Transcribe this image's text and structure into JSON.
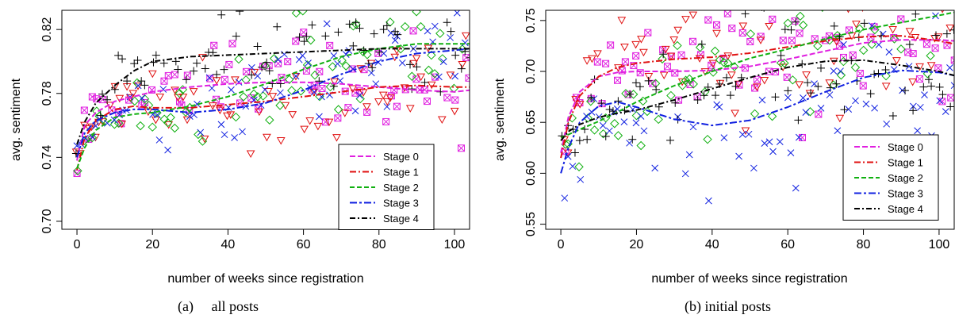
{
  "colors": {
    "Stage 0": "#e020e0",
    "Stage 1": "#e01010",
    "Stage 2": "#10b010",
    "Stage 3": "#1020e0",
    "Stage 4": "#000000"
  },
  "markers": {
    "Stage 0": "square-x",
    "Stage 1": "triangle-down",
    "Stage 2": "diamond",
    "Stage 3": "cross-x",
    "Stage 4": "plus"
  },
  "captions": {
    "a": "(a)     all posts",
    "b": "(b) initial posts"
  },
  "chart_data": [
    {
      "type": "scatter",
      "xlabel": "number of weeks since registration",
      "ylabel": "avg. sentiment",
      "xlim": [
        -4,
        104
      ],
      "ylim": [
        0.695,
        0.832
      ],
      "xticks": [
        0,
        20,
        40,
        60,
        80,
        100
      ],
      "yticks": [
        0.7,
        0.74,
        0.78,
        0.82
      ],
      "ytick_labels": [
        "0.70",
        "0.74",
        "0.78",
        "0.82"
      ],
      "legend_position": "bottom-right",
      "scatter_center_offset": {
        "Stage 0": 0.0,
        "Stage 1": 0.0,
        "Stage 2": 0.0,
        "Stage 3": 0.0,
        "Stage 4": 0.0
      },
      "scatter_spread": 0.022,
      "series": [
        {
          "name": "Stage 0",
          "x": [
            0,
            2,
            5,
            10,
            15,
            20,
            30,
            40,
            50,
            60,
            70,
            80,
            90,
            100,
            104
          ],
          "y": [
            0.738,
            0.76,
            0.768,
            0.775,
            0.778,
            0.781,
            0.784,
            0.786,
            0.787,
            0.787,
            0.786,
            0.784,
            0.782,
            0.781,
            0.782
          ]
        },
        {
          "name": "Stage 1",
          "x": [
            0,
            2,
            5,
            10,
            15,
            20,
            30,
            40,
            50,
            60,
            70,
            80,
            90,
            100,
            104
          ],
          "y": [
            0.732,
            0.752,
            0.763,
            0.77,
            0.772,
            0.771,
            0.771,
            0.773,
            0.775,
            0.778,
            0.781,
            0.784,
            0.785,
            0.784,
            0.784
          ]
        },
        {
          "name": "Stage 2",
          "x": [
            0,
            2,
            5,
            10,
            15,
            20,
            30,
            40,
            50,
            60,
            70,
            80,
            90,
            100,
            104
          ],
          "y": [
            0.733,
            0.746,
            0.757,
            0.765,
            0.767,
            0.768,
            0.772,
            0.778,
            0.786,
            0.795,
            0.803,
            0.808,
            0.811,
            0.811,
            0.811
          ]
        },
        {
          "name": "Stage 3",
          "x": [
            0,
            2,
            5,
            10,
            15,
            20,
            30,
            40,
            50,
            60,
            70,
            80,
            90,
            100,
            104
          ],
          "y": [
            0.74,
            0.755,
            0.763,
            0.768,
            0.77,
            0.77,
            0.768,
            0.77,
            0.774,
            0.782,
            0.792,
            0.8,
            0.805,
            0.807,
            0.808
          ]
        },
        {
          "name": "Stage 4",
          "x": [
            0,
            2,
            5,
            10,
            15,
            20,
            30,
            40,
            50,
            60,
            70,
            80,
            90,
            100,
            104
          ],
          "y": [
            0.748,
            0.762,
            0.774,
            0.785,
            0.794,
            0.8,
            0.803,
            0.804,
            0.805,
            0.806,
            0.807,
            0.808,
            0.808,
            0.808,
            0.808
          ]
        }
      ]
    },
    {
      "type": "scatter",
      "xlabel": "number of weeks since registration",
      "ylabel": "avg. sentiment",
      "xlim": [
        -4,
        104
      ],
      "ylim": [
        0.545,
        0.76
      ],
      "xticks": [
        0,
        20,
        40,
        60,
        80,
        100
      ],
      "yticks": [
        0.55,
        0.6,
        0.65,
        0.7,
        0.75
      ],
      "ytick_labels": [
        "0.55",
        "0.60",
        "0.65",
        "0.70",
        "0.75"
      ],
      "legend_position": "bottom-right",
      "scatter_center_offset": {
        "Stage 0": 0.0,
        "Stage 1": 0.0,
        "Stage 2": 0.0,
        "Stage 3": -0.02,
        "Stage 4": 0.0
      },
      "scatter_spread": 0.05,
      "series": [
        {
          "name": "Stage 0",
          "x": [
            0,
            2,
            5,
            10,
            15,
            20,
            30,
            40,
            50,
            60,
            70,
            80,
            90,
            100,
            104
          ],
          "y": [
            0.62,
            0.655,
            0.68,
            0.695,
            0.699,
            0.7,
            0.7,
            0.701,
            0.705,
            0.712,
            0.72,
            0.728,
            0.731,
            0.731,
            0.73
          ]
        },
        {
          "name": "Stage 1",
          "x": [
            0,
            2,
            5,
            10,
            15,
            20,
            30,
            40,
            50,
            60,
            70,
            80,
            90,
            100,
            104
          ],
          "y": [
            0.615,
            0.65,
            0.676,
            0.695,
            0.704,
            0.708,
            0.712,
            0.714,
            0.718,
            0.724,
            0.73,
            0.734,
            0.735,
            0.73,
            0.727
          ]
        },
        {
          "name": "Stage 2",
          "x": [
            0,
            2,
            5,
            10,
            15,
            20,
            30,
            40,
            50,
            60,
            70,
            80,
            90,
            100,
            104
          ],
          "y": [
            0.635,
            0.638,
            0.643,
            0.651,
            0.66,
            0.67,
            0.686,
            0.7,
            0.713,
            0.722,
            0.732,
            0.741,
            0.748,
            0.755,
            0.758
          ]
        },
        {
          "name": "Stage 3",
          "x": [
            0,
            2,
            5,
            10,
            15,
            20,
            30,
            40,
            50,
            60,
            70,
            80,
            90,
            100,
            104
          ],
          "y": [
            0.6,
            0.625,
            0.65,
            0.666,
            0.67,
            0.665,
            0.653,
            0.647,
            0.652,
            0.665,
            0.68,
            0.694,
            0.701,
            0.699,
            0.696
          ]
        },
        {
          "name": "Stage 4",
          "x": [
            0,
            2,
            5,
            10,
            15,
            20,
            30,
            40,
            50,
            60,
            70,
            80,
            90,
            100,
            104
          ],
          "y": [
            0.632,
            0.641,
            0.648,
            0.655,
            0.659,
            0.662,
            0.672,
            0.683,
            0.694,
            0.704,
            0.71,
            0.711,
            0.706,
            0.7,
            0.696
          ]
        }
      ]
    }
  ]
}
